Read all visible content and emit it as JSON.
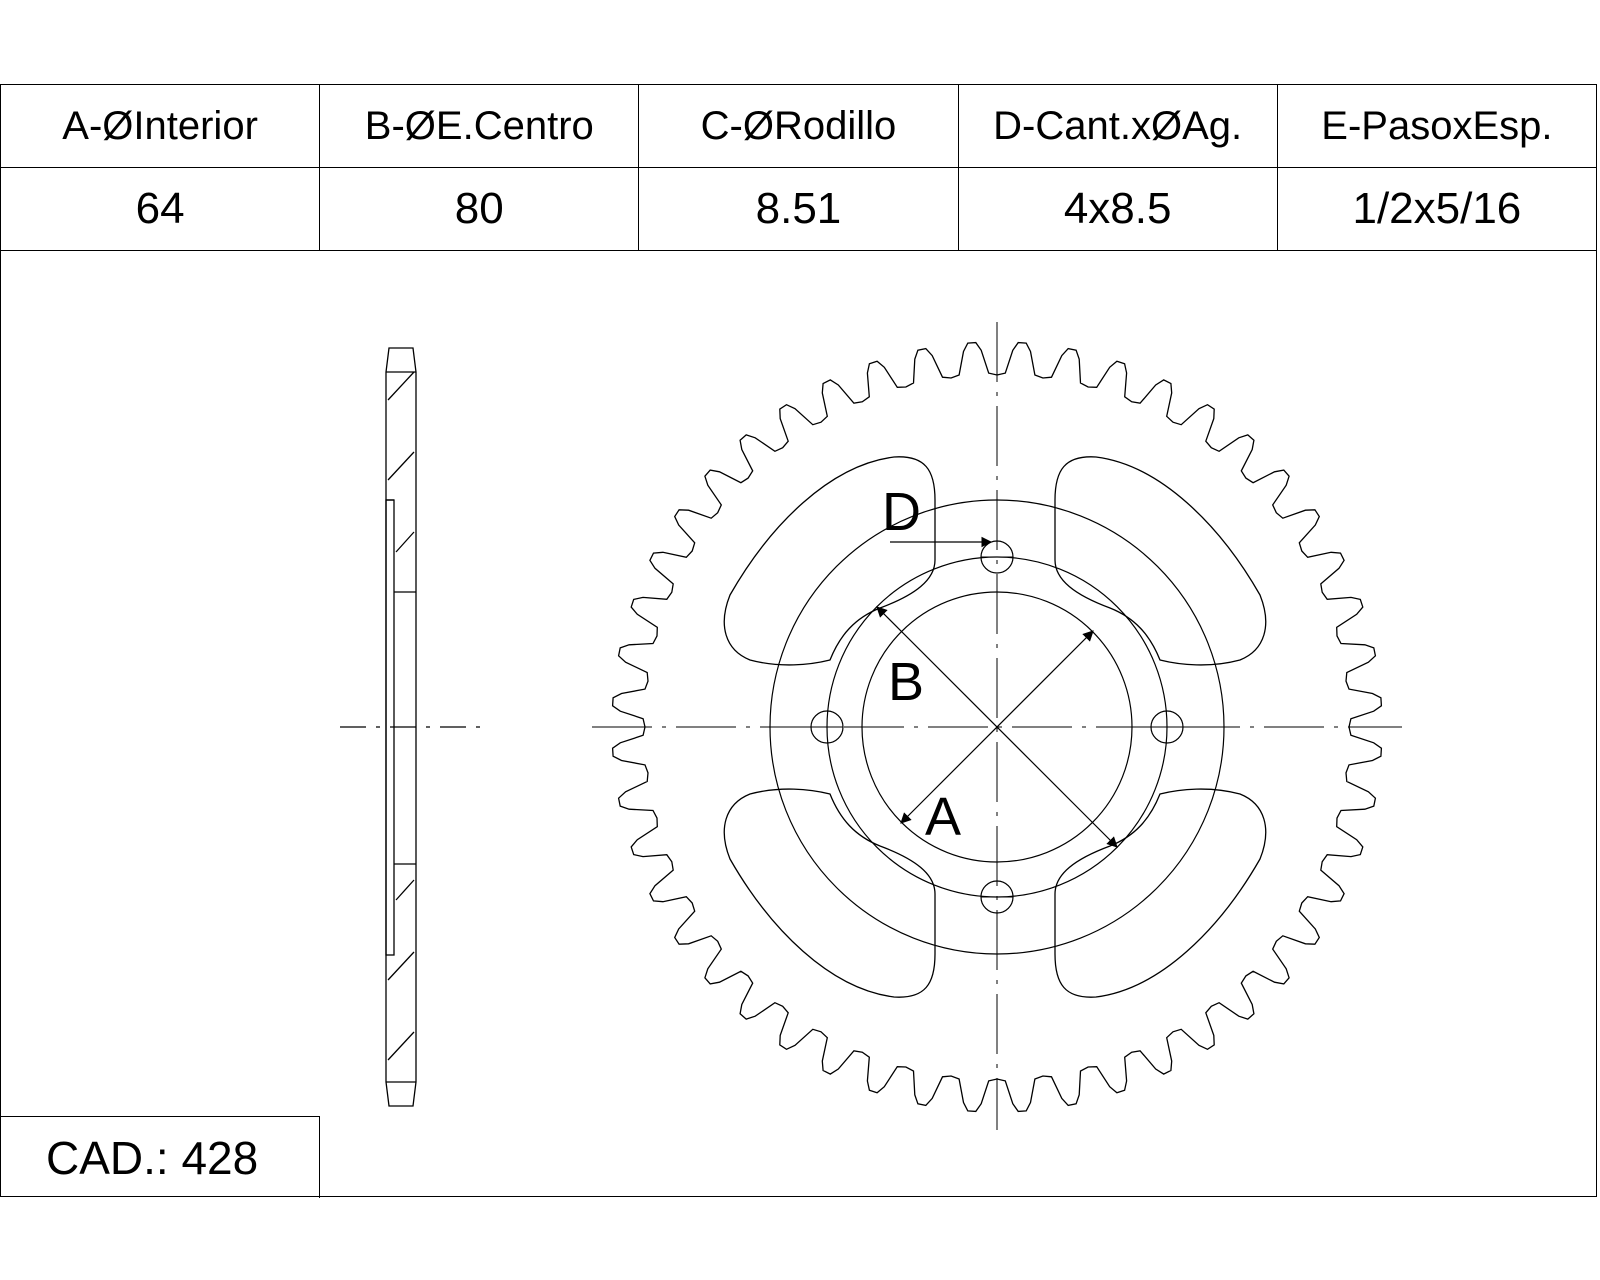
{
  "specs": {
    "headers": [
      "A-ØInterior",
      "B-ØE.Centro",
      "C-ØRodillo",
      "D-Cant.xØAg.",
      "E-PasoxEsp."
    ],
    "values": [
      "64",
      "80",
      "8.51",
      "4x8.5",
      "1/2x5/16"
    ]
  },
  "chain": {
    "label": "CAD.: 428"
  },
  "sprocket": {
    "teeth": 48,
    "bolt_holes": 4,
    "lightening_slots": 4
  },
  "dimension_labels": {
    "a": "A",
    "b": "B",
    "d": "D"
  }
}
